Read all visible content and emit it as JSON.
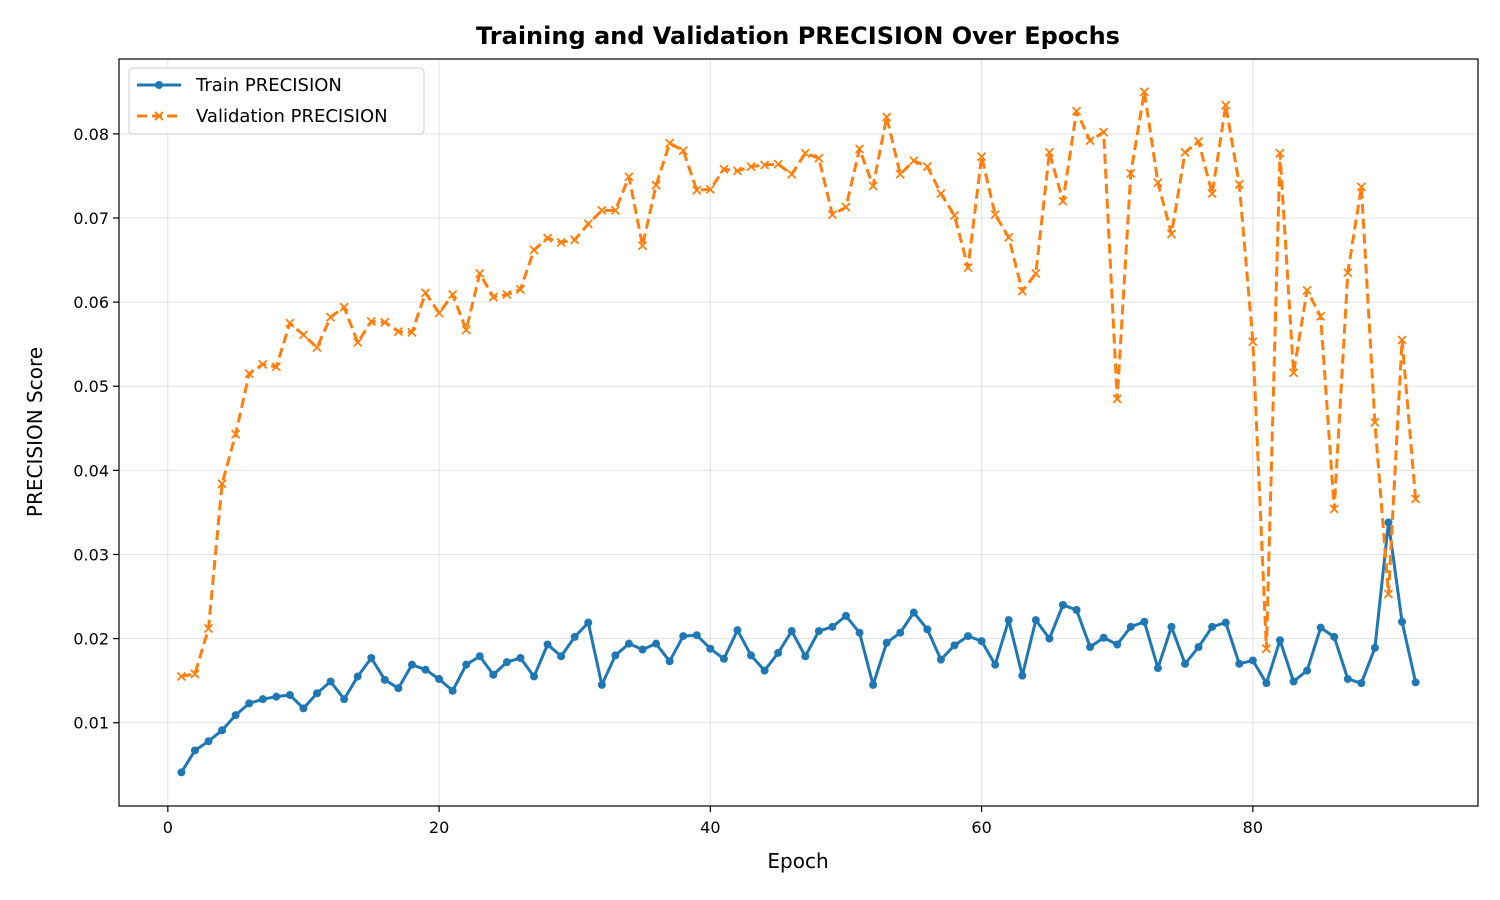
{
  "chart_data": {
    "type": "line",
    "title": "Training and Validation PRECISION Over Epochs",
    "xlabel": "Epoch",
    "ylabel": "PRECISION Score",
    "xlim": [
      -3.6,
      96.6
    ],
    "ylim": [
      0.0001,
      0.0889
    ],
    "xticks": [
      0,
      20,
      40,
      60,
      80
    ],
    "yticks": [
      0.01,
      0.02,
      0.03,
      0.04,
      0.05,
      0.06,
      0.07,
      0.08
    ],
    "ytick_labels": [
      "0.01",
      "0.02",
      "0.03",
      "0.04",
      "0.05",
      "0.06",
      "0.07",
      "0.08"
    ],
    "grid": true,
    "legend_position": "top-left",
    "series": [
      {
        "name": "Train PRECISION",
        "color": "#1f77b4",
        "linestyle": "solid",
        "marker": "circle",
        "values": [
          0.0041,
          0.0067,
          0.0078,
          0.0091,
          0.0109,
          0.0123,
          0.0128,
          0.0131,
          0.0133,
          0.0117,
          0.0135,
          0.0149,
          0.0128,
          0.0155,
          0.0177,
          0.0151,
          0.0141,
          0.0169,
          0.0163,
          0.0152,
          0.0138,
          0.0169,
          0.0179,
          0.0157,
          0.0172,
          0.0177,
          0.0155,
          0.0193,
          0.0179,
          0.0202,
          0.0219,
          0.0145,
          0.018,
          0.0194,
          0.0187,
          0.0194,
          0.0173,
          0.0203,
          0.0204,
          0.0188,
          0.0176,
          0.021,
          0.018,
          0.0162,
          0.0183,
          0.0209,
          0.0179,
          0.0209,
          0.0214,
          0.0227,
          0.0207,
          0.0145,
          0.0195,
          0.0207,
          0.0231,
          0.0211,
          0.0175,
          0.0192,
          0.0203,
          0.0197,
          0.0169,
          0.0222,
          0.0156,
          0.0222,
          0.02,
          0.024,
          0.0234,
          0.019,
          0.0201,
          0.0193,
          0.0214,
          0.022,
          0.0165,
          0.0214,
          0.017,
          0.019,
          0.0214,
          0.0219,
          0.017,
          0.0174,
          0.0147,
          0.0198,
          0.0149,
          0.0162,
          0.0213,
          0.0202,
          0.0152,
          0.0147,
          0.0189,
          0.0338,
          0.022,
          0.0148
        ]
      },
      {
        "name": "Validation PRECISION",
        "color": "#ff7f0e",
        "linestyle": "dashed",
        "marker": "x",
        "values": [
          0.0155,
          0.0158,
          0.0212,
          0.0384,
          0.0443,
          0.0515,
          0.0526,
          0.0523,
          0.0575,
          0.0561,
          0.0546,
          0.0582,
          0.0594,
          0.0552,
          0.0577,
          0.0576,
          0.0565,
          0.0564,
          0.0611,
          0.0587,
          0.0609,
          0.0567,
          0.0634,
          0.0606,
          0.0609,
          0.0615,
          0.0662,
          0.0676,
          0.0671,
          0.0674,
          0.0693,
          0.0709,
          0.0709,
          0.0749,
          0.0667,
          0.0739,
          0.0789,
          0.078,
          0.0733,
          0.0734,
          0.0758,
          0.0756,
          0.0761,
          0.0763,
          0.0764,
          0.0752,
          0.0777,
          0.0771,
          0.0704,
          0.0713,
          0.0782,
          0.0738,
          0.082,
          0.0752,
          0.0768,
          0.0761,
          0.0729,
          0.0703,
          0.0641,
          0.0773,
          0.0704,
          0.0677,
          0.0613,
          0.0634,
          0.0778,
          0.072,
          0.0827,
          0.0792,
          0.0802,
          0.0485,
          0.0753,
          0.085,
          0.0742,
          0.0681,
          0.0778,
          0.0791,
          0.0729,
          0.0834,
          0.074,
          0.0553,
          0.0188,
          0.0777,
          0.0516,
          0.0614,
          0.0583,
          0.0354,
          0.0635,
          0.0737,
          0.0457,
          0.0253,
          0.0555,
          0.0366
        ]
      }
    ]
  }
}
